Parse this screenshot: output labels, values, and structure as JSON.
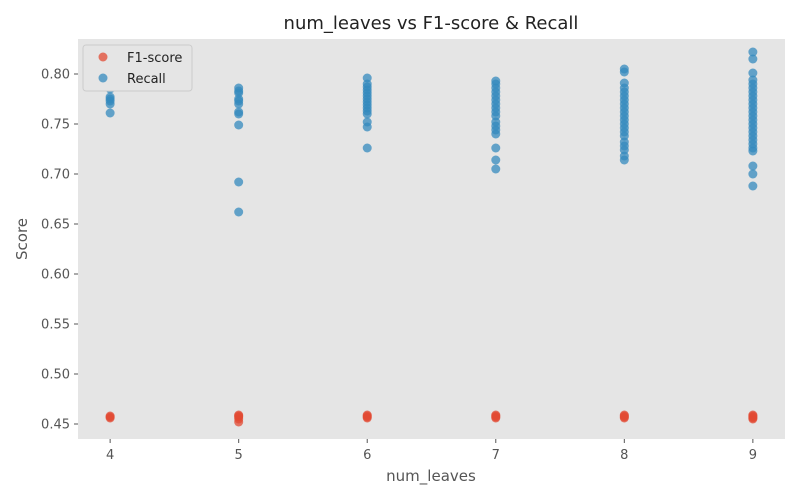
{
  "chart_data": {
    "type": "scatter",
    "title": "num_leaves vs F1-score & Recall",
    "xlabel": "num_leaves",
    "ylabel": "Score",
    "xlim": [
      3.75,
      9.25
    ],
    "ylim": [
      0.435,
      0.835
    ],
    "x_ticks": [
      "4",
      "5",
      "6",
      "7",
      "8",
      "9"
    ],
    "y_ticks": [
      "0.45",
      "0.50",
      "0.55",
      "0.60",
      "0.65",
      "0.70",
      "0.75",
      "0.80"
    ],
    "grid": false,
    "legend_position": "top-left",
    "series": [
      {
        "name": "F1-score",
        "color": "#E24A33",
        "points": [
          [
            4,
            0.456
          ],
          [
            4,
            0.457
          ],
          [
            4,
            0.458
          ],
          [
            5,
            0.452
          ],
          [
            5,
            0.455
          ],
          [
            5,
            0.457
          ],
          [
            5,
            0.458
          ],
          [
            5,
            0.459
          ],
          [
            6,
            0.456
          ],
          [
            6,
            0.457
          ],
          [
            6,
            0.458
          ],
          [
            6,
            0.459
          ],
          [
            7,
            0.456
          ],
          [
            7,
            0.457
          ],
          [
            7,
            0.458
          ],
          [
            7,
            0.459
          ],
          [
            8,
            0.456
          ],
          [
            8,
            0.457
          ],
          [
            8,
            0.458
          ],
          [
            8,
            0.459
          ],
          [
            9,
            0.455
          ],
          [
            9,
            0.456
          ],
          [
            9,
            0.457
          ],
          [
            9,
            0.458
          ],
          [
            9,
            0.459
          ]
        ]
      },
      {
        "name": "Recall",
        "color": "#348ABD",
        "points": [
          [
            4,
            0.761
          ],
          [
            4,
            0.77
          ],
          [
            4,
            0.773
          ],
          [
            4,
            0.775
          ],
          [
            4,
            0.777
          ],
          [
            4,
            0.785
          ],
          [
            5,
            0.662
          ],
          [
            5,
            0.692
          ],
          [
            5,
            0.749
          ],
          [
            5,
            0.76
          ],
          [
            5,
            0.762
          ],
          [
            5,
            0.77
          ],
          [
            5,
            0.773
          ],
          [
            5,
            0.775
          ],
          [
            5,
            0.781
          ],
          [
            5,
            0.783
          ],
          [
            5,
            0.786
          ],
          [
            6,
            0.726
          ],
          [
            6,
            0.747
          ],
          [
            6,
            0.752
          ],
          [
            6,
            0.76
          ],
          [
            6,
            0.763
          ],
          [
            6,
            0.766
          ],
          [
            6,
            0.769
          ],
          [
            6,
            0.772
          ],
          [
            6,
            0.775
          ],
          [
            6,
            0.778
          ],
          [
            6,
            0.781
          ],
          [
            6,
            0.784
          ],
          [
            6,
            0.787
          ],
          [
            6,
            0.79
          ],
          [
            6,
            0.796
          ],
          [
            7,
            0.705
          ],
          [
            7,
            0.714
          ],
          [
            7,
            0.726
          ],
          [
            7,
            0.74
          ],
          [
            7,
            0.744
          ],
          [
            7,
            0.748
          ],
          [
            7,
            0.752
          ],
          [
            7,
            0.758
          ],
          [
            7,
            0.762
          ],
          [
            7,
            0.766
          ],
          [
            7,
            0.77
          ],
          [
            7,
            0.774
          ],
          [
            7,
            0.778
          ],
          [
            7,
            0.782
          ],
          [
            7,
            0.786
          ],
          [
            7,
            0.79
          ],
          [
            7,
            0.793
          ],
          [
            8,
            0.714
          ],
          [
            8,
            0.718
          ],
          [
            8,
            0.724
          ],
          [
            8,
            0.728
          ],
          [
            8,
            0.732
          ],
          [
            8,
            0.738
          ],
          [
            8,
            0.742
          ],
          [
            8,
            0.746
          ],
          [
            8,
            0.75
          ],
          [
            8,
            0.754
          ],
          [
            8,
            0.758
          ],
          [
            8,
            0.762
          ],
          [
            8,
            0.766
          ],
          [
            8,
            0.77
          ],
          [
            8,
            0.774
          ],
          [
            8,
            0.778
          ],
          [
            8,
            0.782
          ],
          [
            8,
            0.786
          ],
          [
            8,
            0.791
          ],
          [
            8,
            0.802
          ],
          [
            8,
            0.805
          ],
          [
            9,
            0.688
          ],
          [
            9,
            0.7
          ],
          [
            9,
            0.708
          ],
          [
            9,
            0.723
          ],
          [
            9,
            0.726
          ],
          [
            9,
            0.73
          ],
          [
            9,
            0.734
          ],
          [
            9,
            0.738
          ],
          [
            9,
            0.742
          ],
          [
            9,
            0.746
          ],
          [
            9,
            0.75
          ],
          [
            9,
            0.754
          ],
          [
            9,
            0.758
          ],
          [
            9,
            0.762
          ],
          [
            9,
            0.766
          ],
          [
            9,
            0.77
          ],
          [
            9,
            0.774
          ],
          [
            9,
            0.778
          ],
          [
            9,
            0.782
          ],
          [
            9,
            0.786
          ],
          [
            9,
            0.79
          ],
          [
            9,
            0.794
          ],
          [
            9,
            0.801
          ],
          [
            9,
            0.815
          ],
          [
            9,
            0.822
          ]
        ]
      }
    ]
  }
}
